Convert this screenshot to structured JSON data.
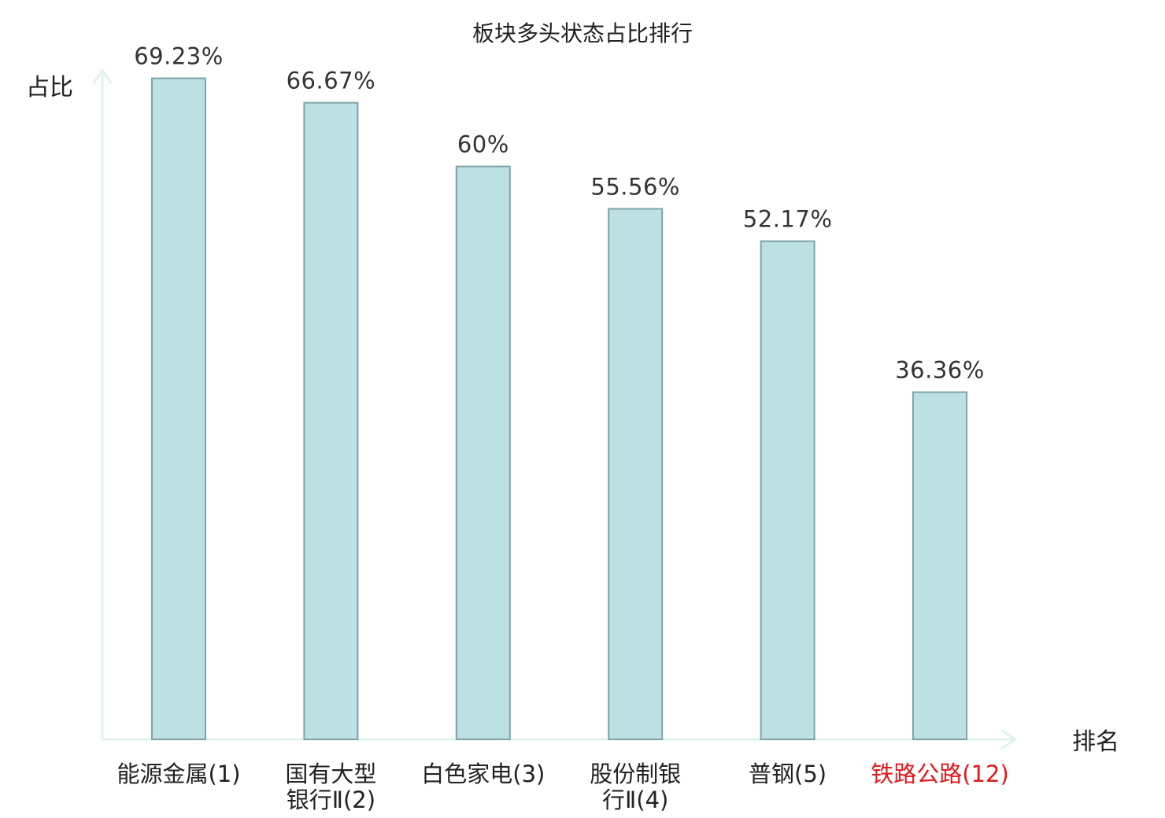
{
  "chart_data": {
    "type": "bar",
    "title": "板块多头状态占比排行",
    "ylabel": "占比",
    "xlabel": "排名",
    "ylim": [
      0,
      75
    ],
    "categories": [
      [
        "能源金属(1)"
      ],
      [
        "国有大型",
        "银行Ⅱ(2)"
      ],
      [
        "白色家电(3)"
      ],
      [
        "股份制银",
        "行Ⅱ(4)"
      ],
      [
        "普钢(5)"
      ],
      [
        "铁路公路(12)"
      ]
    ],
    "values": [
      69.23,
      66.67,
      60,
      55.56,
      52.17,
      36.36
    ],
    "value_labels": [
      "69.23%",
      "66.67%",
      "60%",
      "55.56%",
      "52.17%",
      "36.36%"
    ],
    "highlight_index": 5,
    "grid": false,
    "legend": "none"
  },
  "colors": {
    "bar_fill": "#bde0e3",
    "bar_stroke": "#7fa3a6",
    "axis": "#e0f2ef",
    "label": "#222222",
    "highlight": "#e0191c"
  }
}
